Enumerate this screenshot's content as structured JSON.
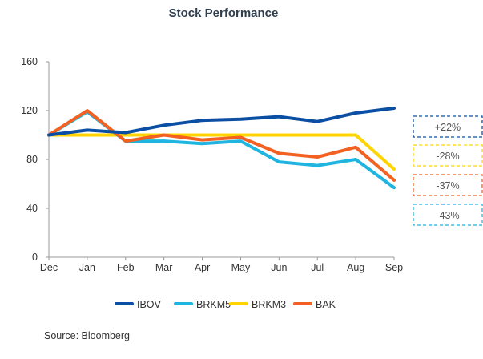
{
  "chart_data": {
    "type": "line",
    "title": "Stock Performance",
    "categories": [
      "Dec",
      "Jan",
      "Feb",
      "Mar",
      "Apr",
      "May",
      "Jun",
      "Jul",
      "Aug",
      "Sep"
    ],
    "ylim": [
      0,
      160
    ],
    "yticks": [
      "0",
      "40",
      "80",
      "120",
      "160"
    ],
    "ytick_values": [
      0,
      40,
      80,
      120,
      160
    ],
    "grid": false,
    "legend_position": "bottom",
    "series": [
      {
        "name": "IBOV",
        "color": "#0a4fa3",
        "values": [
          100,
          104,
          102,
          108,
          112,
          113,
          115,
          111,
          118,
          122
        ]
      },
      {
        "name": "BRKM5",
        "color": "#1fb5e0",
        "values": [
          100,
          119,
          95,
          95,
          93,
          95,
          78,
          75,
          80,
          57
        ]
      },
      {
        "name": "BRKM3",
        "color": "#ffd400",
        "values": [
          100,
          100,
          100,
          100,
          100,
          100,
          100,
          100,
          100,
          72
        ]
      },
      {
        "name": "BAK",
        "color": "#f26122",
        "values": [
          100,
          120,
          95,
          100,
          96,
          98,
          85,
          82,
          90,
          63
        ]
      }
    ],
    "annotations": [
      {
        "text": "+22%",
        "series": "IBOV",
        "color": "#0a4fa3"
      },
      {
        "text": "-28%",
        "series": "BRKM3",
        "color": "#ffd400"
      },
      {
        "text": "-37%",
        "series": "BAK",
        "color": "#f26122"
      },
      {
        "text": "-43%",
        "series": "BRKM5",
        "color": "#1fb5e0"
      }
    ],
    "source": "Source: Bloomberg"
  }
}
